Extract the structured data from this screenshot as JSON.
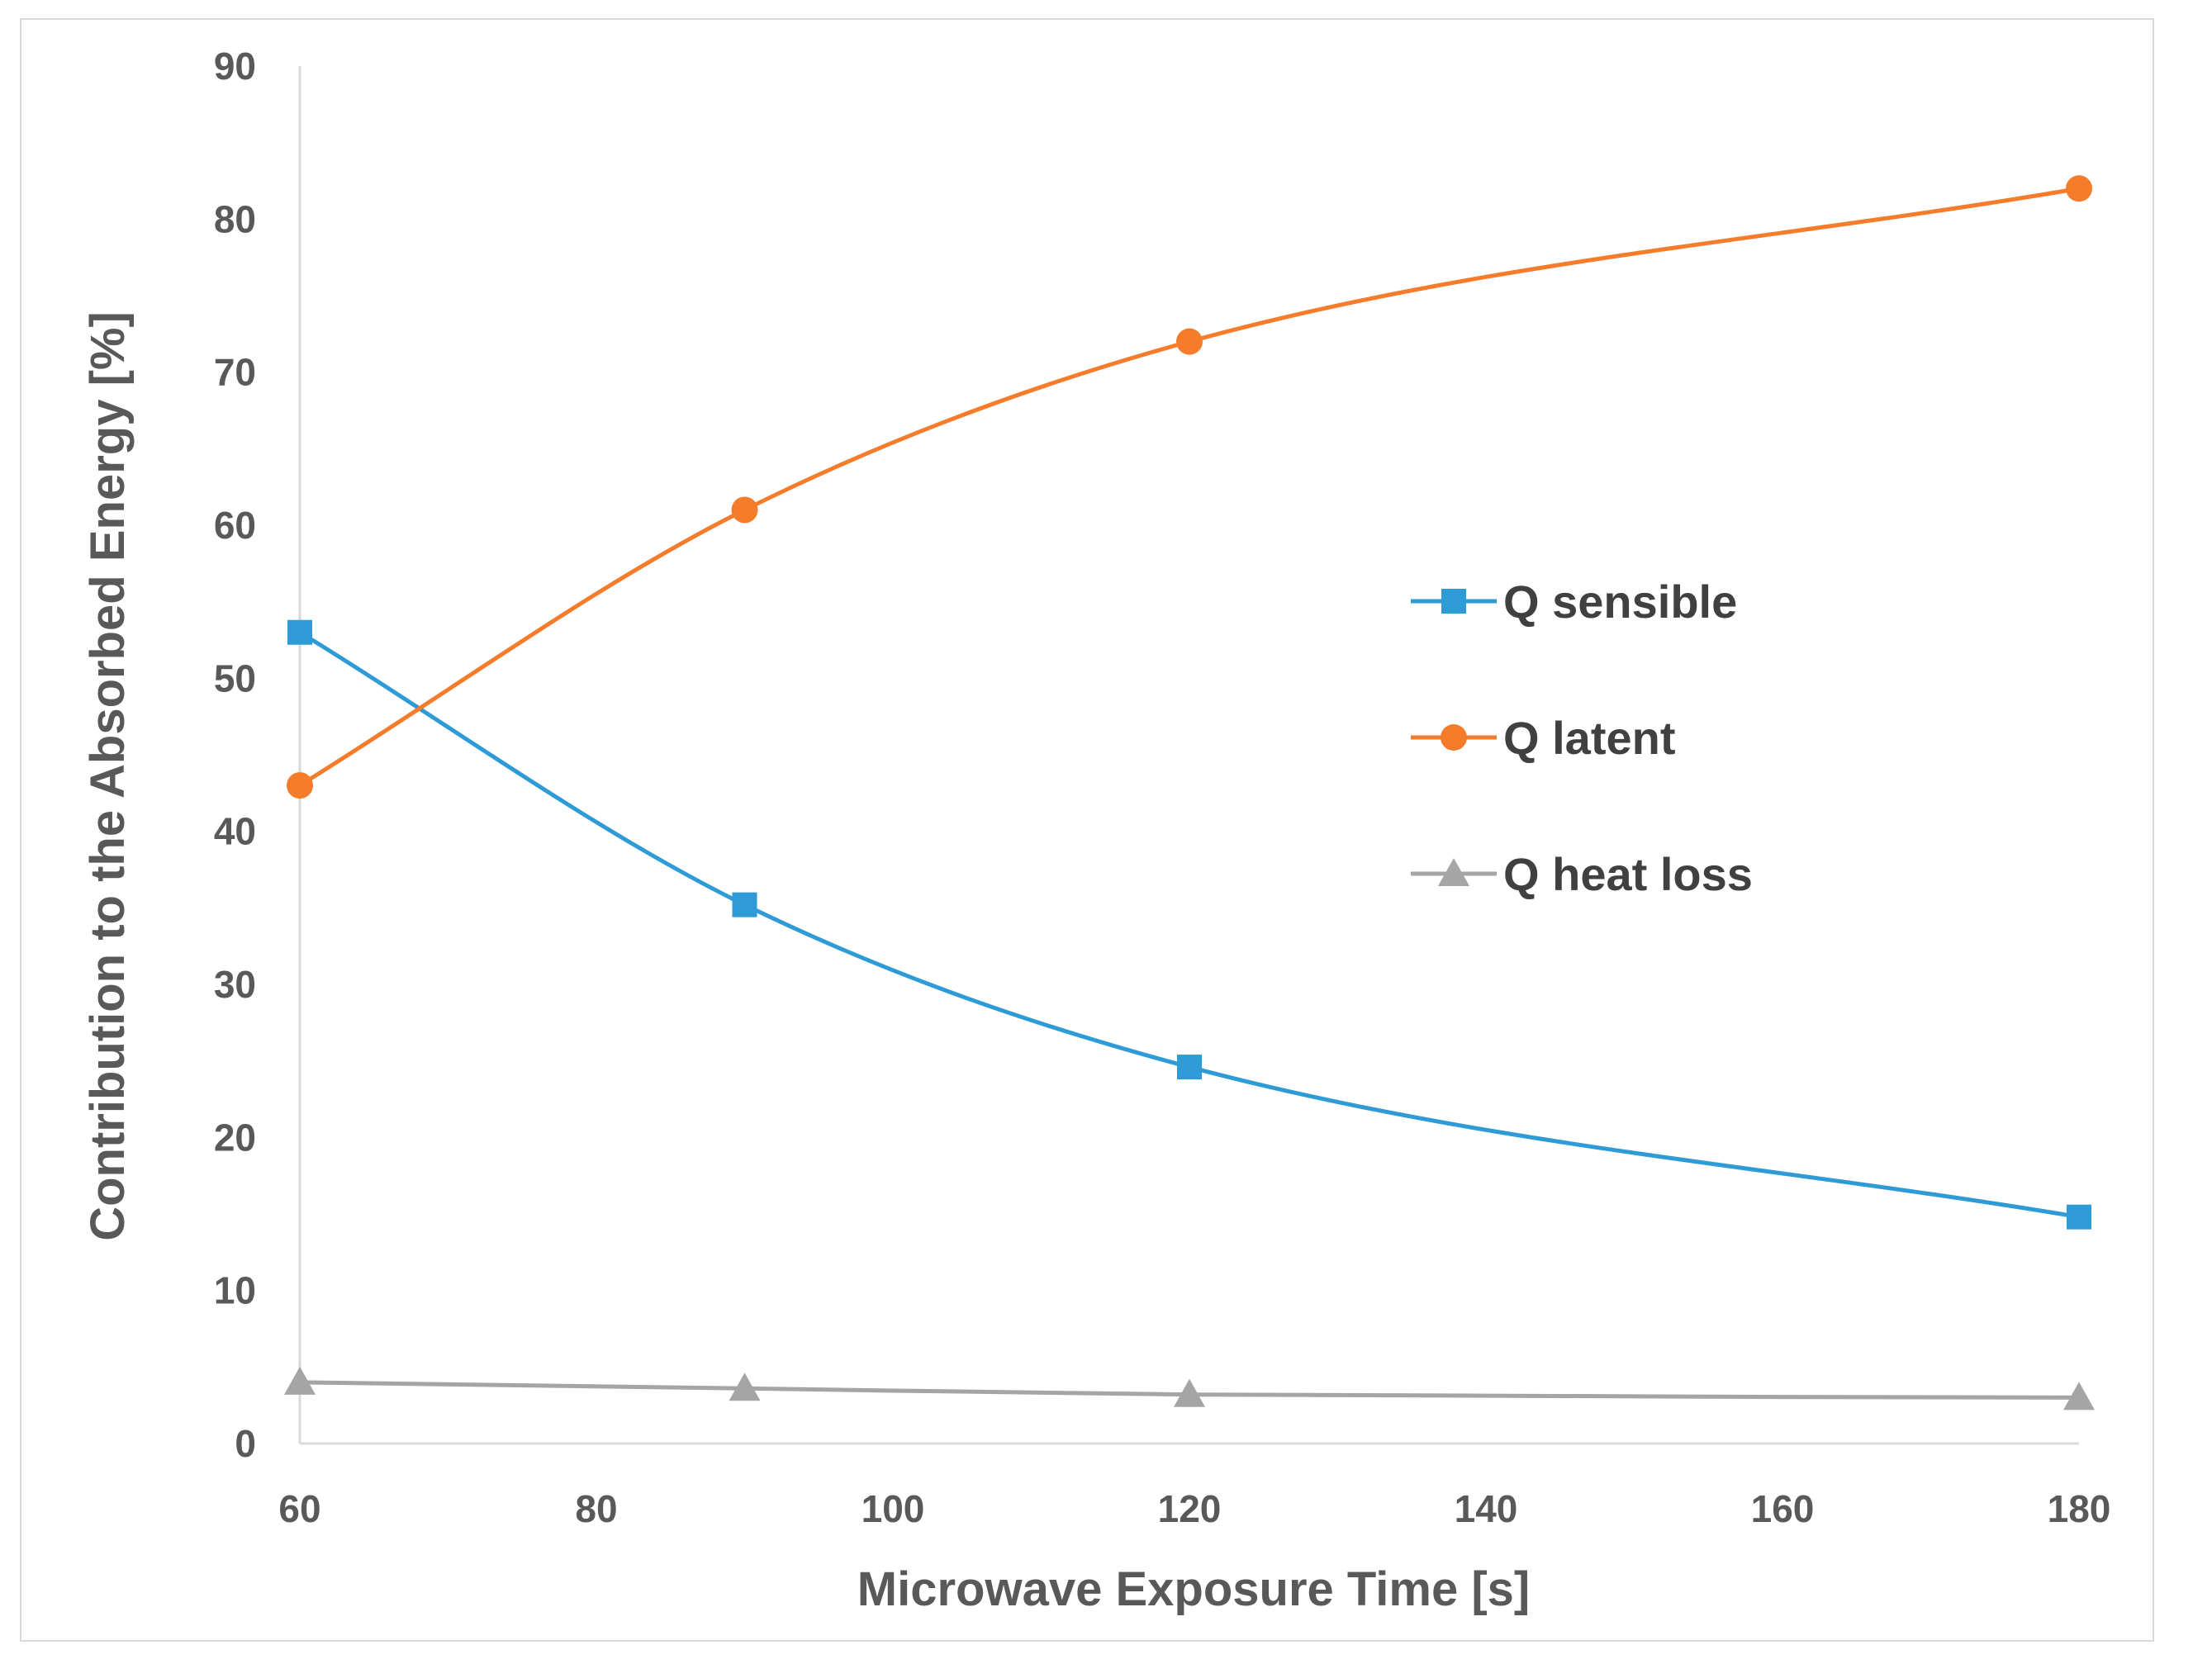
{
  "chart_data": {
    "type": "line",
    "title": "",
    "xlabel": "Microwave Exposure Time [s]",
    "ylabel": "Contribution to the  Absorbed Energy  [%]",
    "xlim": [
      60,
      180
    ],
    "ylim": [
      0,
      90
    ],
    "x_ticks": [
      "60",
      "80",
      "100",
      "120",
      "140",
      "160",
      "180"
    ],
    "y_ticks": [
      "0",
      "10",
      "20",
      "30",
      "40",
      "50",
      "60",
      "70",
      "80",
      "90"
    ],
    "grid": false,
    "legend_position": "center-right",
    "x": [
      60,
      90,
      120,
      180
    ],
    "series": [
      {
        "name": "Q sensible",
        "values": [
          53,
          35.2,
          24.6,
          14.8
        ],
        "color": "#2e9bd6",
        "marker": "square"
      },
      {
        "name": "Q latent",
        "values": [
          43,
          61,
          72,
          82
        ],
        "color": "#f47c2a",
        "marker": "circle"
      },
      {
        "name": "Q heat loss",
        "values": [
          4,
          3.6,
          3.2,
          3
        ],
        "color": "#a5a5a5",
        "marker": "triangle"
      }
    ]
  }
}
